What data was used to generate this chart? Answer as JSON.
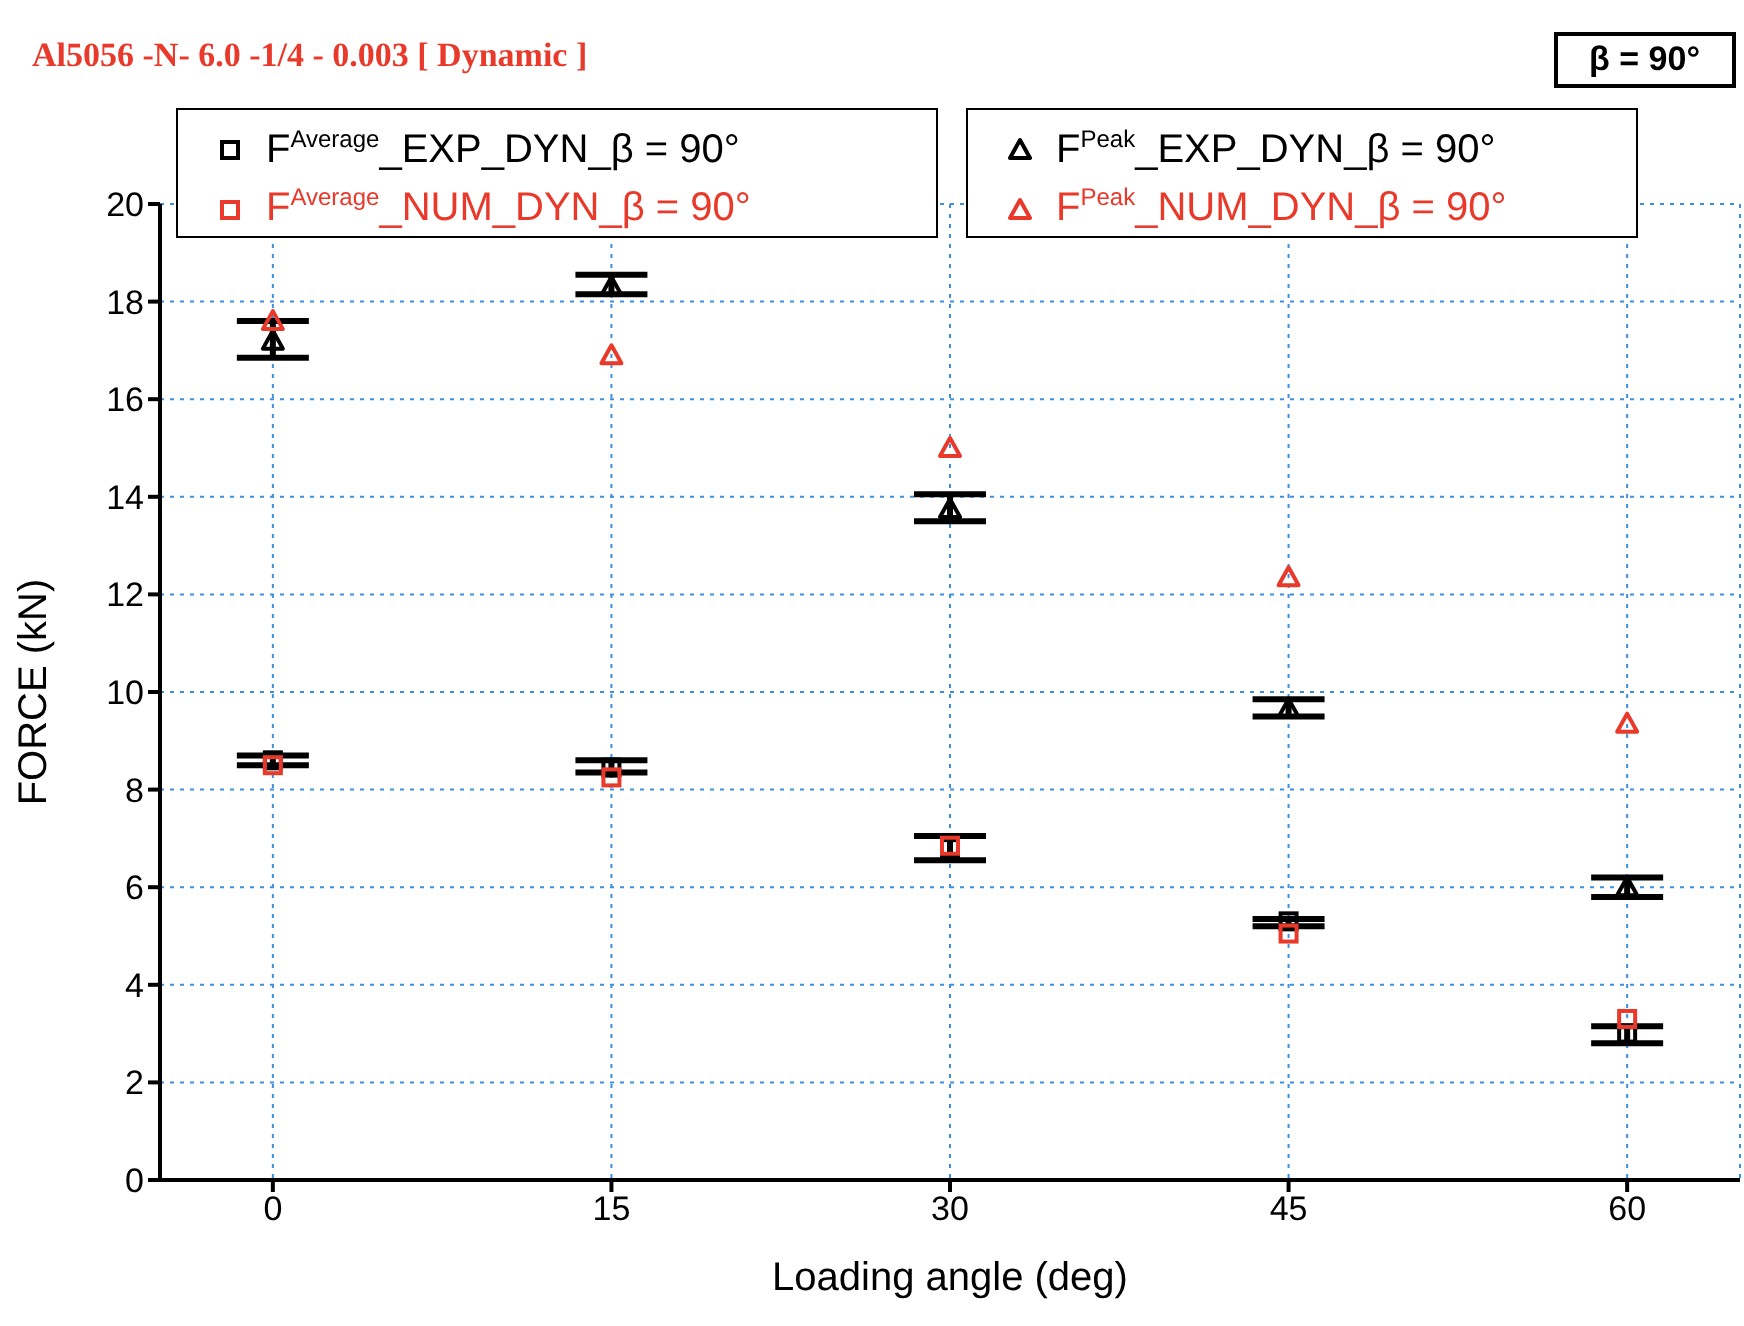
{
  "chart_data": {
    "type": "scatter",
    "title": "Al5056 -N- 6.0 -1/4 - 0.003  [ Dynamic ]",
    "xlabel": "Loading angle (deg)",
    "ylabel": "FORCE (kN)",
    "annotations": [
      "β = 90°"
    ],
    "x": [
      0,
      15,
      30,
      45,
      60
    ],
    "xlim": [
      -5,
      65
    ],
    "xticks": [
      0,
      15,
      30,
      45,
      60
    ],
    "ylim": [
      0,
      20
    ],
    "yticks": [
      0,
      2,
      4,
      6,
      8,
      10,
      12,
      14,
      16,
      18,
      20
    ],
    "grid": true,
    "legend": "top",
    "series": [
      {
        "name": "F$^{Average}$_EXP_DYN_β = 90°",
        "color": "#000000",
        "marker": "square",
        "values": [
          8.6,
          8.45,
          6.8,
          5.3,
          3.0
        ],
        "errors": [
          [
            8.5,
            8.7
          ],
          [
            8.35,
            8.6
          ],
          [
            6.55,
            7.05
          ],
          [
            5.2,
            5.35
          ],
          [
            2.8,
            3.15
          ]
        ]
      },
      {
        "name": "F$^{Average}$_NUM_DYN_β = 90°",
        "color": "#e8392a",
        "marker": "square",
        "values": [
          8.5,
          8.25,
          6.85,
          5.05,
          3.3
        ]
      },
      {
        "name": "F$^{Peak}$_EXP_DYN_β = 90°",
        "color": "#000000",
        "marker": "triangle",
        "values": [
          17.2,
          18.3,
          13.75,
          9.65,
          6.0
        ],
        "errors": [
          [
            16.85,
            17.6
          ],
          [
            18.15,
            18.55
          ],
          [
            13.5,
            14.05
          ],
          [
            9.5,
            9.85
          ],
          [
            5.8,
            6.2
          ]
        ]
      },
      {
        "name": "F$^{Peak}$_NUM_DYN_β = 90°",
        "color": "#e8392a",
        "marker": "triangle",
        "values": [
          17.6,
          16.9,
          15.0,
          12.35,
          9.35
        ]
      }
    ]
  }
}
